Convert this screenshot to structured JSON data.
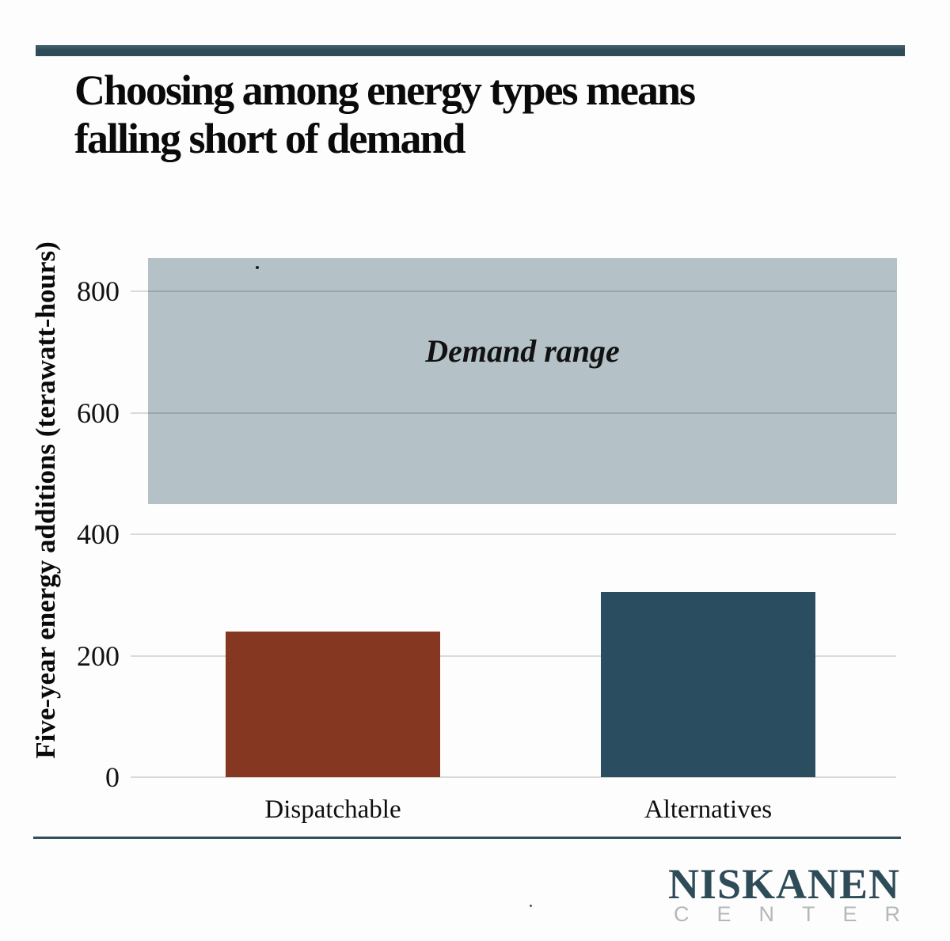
{
  "title": {
    "line1": "Choosing among energy types means",
    "line2": "falling short of demand"
  },
  "branding": {
    "name": "NISKANEN",
    "subname": "CENTER",
    "brand_color": "#2e4b58",
    "subname_color": "#b4b8b8"
  },
  "accent": {
    "top_bar_color": "#2e4b58",
    "divider_color": "#33515d"
  },
  "chart_data": {
    "type": "bar",
    "title": "Choosing among energy types means falling short of demand",
    "categories": [
      "Dispatchable",
      "Alternatives"
    ],
    "values": [
      240,
      305
    ],
    "bar_colors": [
      "#863722",
      "#2a4e60"
    ],
    "ylabel": "Five-year energy additions (terawatt-hours)",
    "xlabel": "",
    "yticks": [
      0,
      200,
      400,
      600,
      800
    ],
    "ylim": [
      0,
      880
    ],
    "grid": true,
    "gridline_color": "#dcdcdc",
    "band": {
      "label": "Demand range",
      "min": 450,
      "max": 855,
      "fill_color": "#b4c1c7"
    }
  }
}
